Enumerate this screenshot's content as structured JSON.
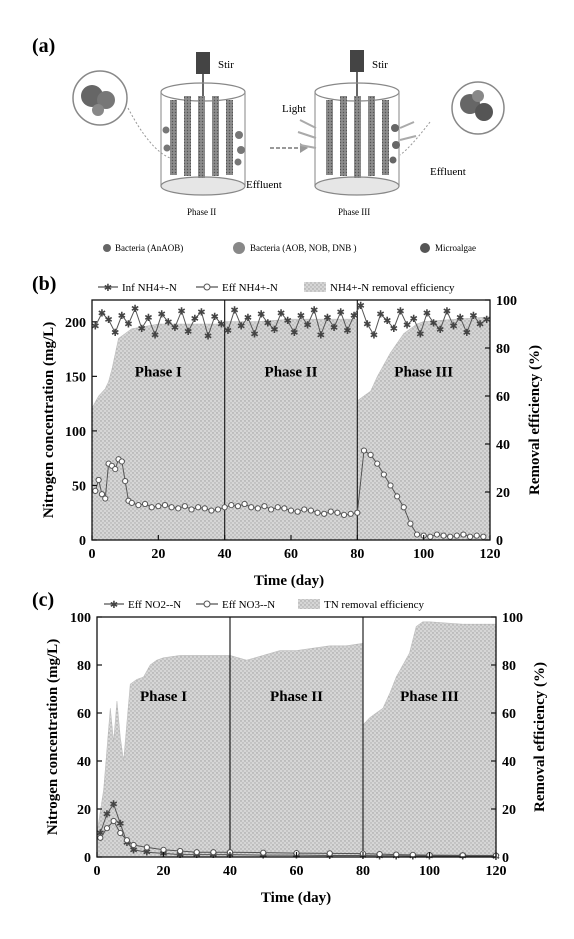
{
  "diagram": {
    "panel_label": "(a)",
    "left_reactor": {
      "stir_label": "Stir",
      "effluent_label": "Effluent",
      "phase_label": "Phase II"
    },
    "right_reactor": {
      "stir_label": "Stir",
      "effluent_label": "Effluent",
      "phase_label": "Phase III",
      "light_label": "Light"
    },
    "legend": [
      "Bacteria (AnAOB)",
      "Bacteria (AOB, NOB, DNB )",
      "Microalgae"
    ],
    "colors": {
      "bacteria": "#777777",
      "algae": "#555555",
      "reactor": "#999999"
    }
  },
  "chart_data": [
    {
      "panel_label": "(b)",
      "type": "line",
      "xlabel": "Time (day)",
      "ylabel": "Nitrogen concentration (mg/L)",
      "y2label": "Removal efficiency (%)",
      "xlim": [
        0,
        120
      ],
      "ylim": [
        0,
        220
      ],
      "y2lim": [
        0,
        100
      ],
      "xticks": [
        0,
        20,
        40,
        60,
        80,
        100,
        120
      ],
      "yticks": [
        0,
        50,
        100,
        150,
        200
      ],
      "y2ticks": [
        0,
        20,
        40,
        60,
        80,
        100
      ],
      "phase_boundaries": [
        40,
        80
      ],
      "phases": [
        {
          "label": "Phase I",
          "x": 20,
          "y": 150
        },
        {
          "label": "Phase II",
          "x": 60,
          "y": 150
        },
        {
          "label": "Phase III",
          "x": 100,
          "y": 150
        }
      ],
      "legend": [
        "Inf NH4+-N",
        "Eff NH4+-N",
        "NH4+-N removal efficiency"
      ],
      "series": [
        {
          "name": "Inf NH4+-N",
          "marker": "star",
          "x": [
            1,
            3,
            5,
            7,
            9,
            11,
            13,
            15,
            17,
            19,
            21,
            23,
            25,
            27,
            29,
            31,
            33,
            35,
            37,
            39,
            41,
            43,
            45,
            47,
            49,
            51,
            53,
            55,
            57,
            59,
            61,
            63,
            65,
            67,
            69,
            71,
            73,
            75,
            77,
            79,
            81,
            83,
            85,
            87,
            89,
            91,
            93,
            95,
            97,
            99,
            101,
            103,
            105,
            107,
            109,
            111,
            113,
            115,
            117,
            119
          ],
          "y": [
            196,
            208,
            202,
            190,
            206,
            198,
            212,
            194,
            204,
            188,
            207,
            200,
            195,
            210,
            191,
            203,
            209,
            187,
            205,
            198,
            192,
            211,
            196,
            204,
            189,
            207,
            199,
            193,
            208,
            201,
            190,
            206,
            197,
            211,
            188,
            204,
            195,
            209,
            192,
            206,
            215,
            198,
            188,
            207,
            201,
            194,
            210,
            197,
            203,
            189,
            208,
            199,
            193,
            210,
            196,
            204,
            190,
            206,
            198,
            202
          ]
        },
        {
          "name": "Eff NH4+-N",
          "marker": "circle",
          "x": [
            1,
            2,
            3,
            4,
            5,
            6,
            7,
            8,
            9,
            10,
            11,
            12,
            14,
            16,
            18,
            20,
            22,
            24,
            26,
            28,
            30,
            32,
            34,
            36,
            38,
            40,
            42,
            44,
            46,
            48,
            50,
            52,
            54,
            56,
            58,
            60,
            62,
            64,
            66,
            68,
            70,
            72,
            74,
            76,
            78,
            80,
            82,
            84,
            86,
            88,
            90,
            92,
            94,
            96,
            98,
            100,
            102,
            104,
            106,
            108,
            110,
            112,
            114,
            116,
            118
          ],
          "y": [
            45,
            55,
            42,
            38,
            70,
            68,
            65,
            74,
            72,
            54,
            36,
            34,
            32,
            33,
            30,
            31,
            32,
            30,
            29,
            31,
            28,
            30,
            29,
            27,
            28,
            30,
            32,
            31,
            33,
            30,
            29,
            31,
            28,
            30,
            29,
            27,
            26,
            28,
            27,
            25,
            24,
            26,
            25,
            23,
            24,
            25,
            82,
            78,
            70,
            60,
            50,
            40,
            30,
            15,
            5,
            4,
            3,
            5,
            4,
            3,
            4,
            5,
            3,
            4,
            3
          ]
        },
        {
          "name": "NH4+-N removal efficiency",
          "type": "area",
          "axis": "y2",
          "x": [
            0,
            2,
            4,
            5,
            6,
            8,
            10,
            12,
            20,
            30,
            39.9,
            40,
            50,
            60,
            70,
            79.9,
            80,
            82,
            84,
            86,
            88,
            90,
            92,
            94,
            96,
            98,
            100,
            110,
            120
          ],
          "y": [
            55,
            60,
            63,
            66,
            71,
            84,
            86,
            88,
            90,
            90,
            90,
            91,
            91,
            92,
            92,
            92,
            58,
            60,
            62,
            68,
            73,
            78,
            82,
            86,
            88,
            90,
            91,
            92,
            93
          ]
        }
      ]
    },
    {
      "panel_label": "(c)",
      "type": "line",
      "xlabel": "Time (day)",
      "ylabel": "Nitrogen concentration (mg/L)",
      "y2label": "Removal efficiency (%)",
      "xlim": [
        0,
        120
      ],
      "ylim": [
        0,
        100
      ],
      "y2lim": [
        0,
        100
      ],
      "xticks": [
        0,
        20,
        40,
        60,
        80,
        100,
        120
      ],
      "yticks": [
        0,
        20,
        40,
        60,
        80,
        100
      ],
      "y2ticks": [
        0,
        20,
        40,
        60,
        80,
        100
      ],
      "phase_boundaries": [
        40,
        80
      ],
      "phases": [
        {
          "label": "Phase I",
          "x": 20,
          "y": 65
        },
        {
          "label": "Phase II",
          "x": 60,
          "y": 65
        },
        {
          "label": "Phase III",
          "x": 100,
          "y": 65
        }
      ],
      "legend": [
        "Eff NO2--N",
        "Eff NO3--N",
        "TN removal efficiency"
      ],
      "series": [
        {
          "name": "Eff NO2--N",
          "marker": "star",
          "x": [
            1,
            3,
            5,
            7,
            9,
            11,
            15,
            20,
            25,
            30,
            35,
            40,
            50,
            60,
            70,
            80,
            85,
            90,
            95,
            100,
            110,
            120
          ],
          "y": [
            10,
            18,
            22,
            14,
            6,
            3,
            2,
            1.5,
            1,
            1,
            1,
            1,
            0.8,
            0.8,
            0.6,
            0.6,
            0.5,
            0.5,
            0.4,
            0.4,
            0.4,
            0.3
          ]
        },
        {
          "name": "Eff NO3--N",
          "marker": "circle",
          "x": [
            1,
            3,
            5,
            7,
            9,
            11,
            15,
            20,
            25,
            30,
            35,
            40,
            50,
            60,
            70,
            80,
            85,
            90,
            95,
            100,
            110,
            120
          ],
          "y": [
            8,
            12,
            15,
            10,
            7,
            5,
            4,
            3,
            2.5,
            2,
            2,
            2,
            1.8,
            1.6,
            1.5,
            1.4,
            1.2,
            1,
            0.9,
            0.8,
            0.7,
            0.6
          ]
        },
        {
          "name": "TN removal efficiency",
          "type": "area",
          "axis": "y2",
          "x": [
            0,
            2,
            3,
            4,
            5,
            6,
            7,
            8,
            10,
            12,
            14,
            16,
            18,
            20,
            25,
            30,
            35,
            39.9,
            40,
            45,
            50,
            55,
            60,
            65,
            70,
            75,
            79.9,
            80,
            82,
            84,
            86,
            88,
            90,
            92,
            94,
            96,
            98,
            100,
            110,
            120
          ],
          "y": [
            10,
            28,
            45,
            62,
            48,
            65,
            50,
            40,
            72,
            74,
            75,
            80,
            82,
            83,
            84,
            84,
            84,
            84,
            84,
            82,
            84,
            86,
            86,
            87,
            88,
            88,
            89,
            55,
            58,
            60,
            62,
            68,
            75,
            80,
            85,
            96,
            98,
            98,
            97,
            97
          ]
        }
      ]
    }
  ]
}
